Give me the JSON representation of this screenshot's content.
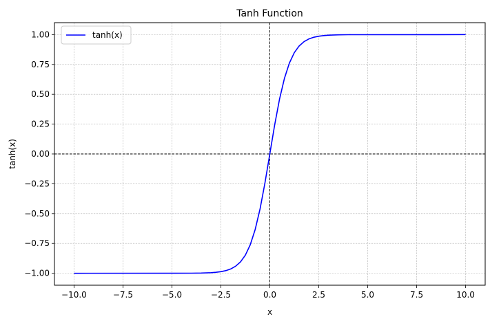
{
  "chart_data": {
    "type": "line",
    "title": "Tanh Function",
    "xlabel": "x",
    "ylabel": "tanh(x)",
    "xlim": [
      -11.0,
      11.0
    ],
    "ylim": [
      -1.1,
      1.1
    ],
    "xticks": [
      -10.0,
      -7.5,
      -5.0,
      -2.5,
      0.0,
      2.5,
      5.0,
      7.5,
      10.0
    ],
    "xtick_labels": [
      "−10.0",
      "−7.5",
      "−5.0",
      "−2.5",
      "0.0",
      "2.5",
      "5.0",
      "7.5",
      "10.0"
    ],
    "yticks": [
      -1.0,
      -0.75,
      -0.5,
      -0.25,
      0.0,
      0.25,
      0.5,
      0.75,
      1.0
    ],
    "ytick_labels": [
      "−1.00",
      "−0.75",
      "−0.50",
      "−0.25",
      "0.00",
      "0.25",
      "0.50",
      "0.75",
      "1.00"
    ],
    "grid": true,
    "legend_position": "upper-left",
    "reference_lines": {
      "horizontal_y": 0,
      "vertical_x": 0,
      "color": "#000000",
      "style": "dashed"
    },
    "series": [
      {
        "name": "tanh(x)",
        "color": "#0000ff",
        "x": [
          -10,
          -4,
          -3.5,
          -3,
          -2.75,
          -2.5,
          -2.25,
          -2,
          -1.75,
          -1.5,
          -1.25,
          -1,
          -0.75,
          -0.5,
          -0.25,
          0,
          0.25,
          0.5,
          0.75,
          1,
          1.25,
          1.5,
          1.75,
          2,
          2.25,
          2.5,
          2.75,
          3,
          3.5,
          4,
          10
        ],
        "y": [
          -1.0,
          -0.9993,
          -0.9982,
          -0.9951,
          -0.9918,
          -0.9866,
          -0.978,
          -0.964,
          -0.9414,
          -0.9051,
          -0.8483,
          -0.7616,
          -0.6351,
          -0.4621,
          -0.2449,
          0.0,
          0.2449,
          0.4621,
          0.6351,
          0.7616,
          0.8483,
          0.9051,
          0.9414,
          0.964,
          0.978,
          0.9866,
          0.9918,
          0.9951,
          0.9982,
          0.9993,
          1.0
        ]
      }
    ]
  }
}
